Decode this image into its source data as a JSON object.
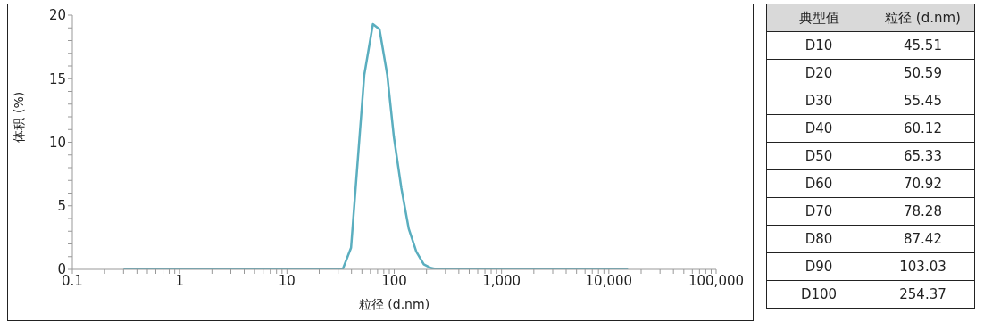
{
  "chart_data": [
    {
      "type": "line",
      "xlabel": "粒径 (d.nm)",
      "ylabel": "体积 (%)",
      "log": "x",
      "grid": false,
      "marker": "none",
      "line_style": "solid",
      "series": [
        {
          "color": "#5aaebf",
          "x": [
            0.3,
            33.1,
            39.6,
            52.6,
            63.3,
            72.9,
            86.1,
            99.3,
            116.5,
            136.5,
            160.6,
            188.5,
            221,
            254.6,
            15100
          ],
          "values": [
            0,
            0,
            1.7,
            15.3,
            19.3,
            18.9,
            15.3,
            10.4,
            6.4,
            3.2,
            1.4,
            0.4,
            0.1,
            0,
            0
          ]
        }
      ],
      "xlim": [
        0.1,
        100000
      ],
      "xticks": [
        {
          "value": 0.1,
          "label": "0.1"
        },
        {
          "value": 0.2,
          "label": null
        },
        {
          "value": 0.3,
          "label": null
        },
        {
          "value": 0.4,
          "label": null
        },
        {
          "value": 0.5,
          "label": null
        },
        {
          "value": 0.6,
          "label": null
        },
        {
          "value": 0.7,
          "label": null
        },
        {
          "value": 0.8,
          "label": null
        },
        {
          "value": 0.9,
          "label": null
        },
        {
          "value": 1,
          "label": "1"
        },
        {
          "value": 2,
          "label": null
        },
        {
          "value": 3,
          "label": null
        },
        {
          "value": 4,
          "label": null
        },
        {
          "value": 5,
          "label": null
        },
        {
          "value": 6,
          "label": null
        },
        {
          "value": 7,
          "label": null
        },
        {
          "value": 8,
          "label": null
        },
        {
          "value": 9,
          "label": null
        },
        {
          "value": 10,
          "label": "10"
        },
        {
          "value": 20,
          "label": null
        },
        {
          "value": 30,
          "label": null
        },
        {
          "value": 40,
          "label": null
        },
        {
          "value": 50,
          "label": null
        },
        {
          "value": 60,
          "label": null
        },
        {
          "value": 70,
          "label": null
        },
        {
          "value": 80,
          "label": null
        },
        {
          "value": 90,
          "label": null
        },
        {
          "value": 100,
          "label": "100"
        },
        {
          "value": 200,
          "label": null
        },
        {
          "value": 300,
          "label": null
        },
        {
          "value": 400,
          "label": null
        },
        {
          "value": 500,
          "label": null
        },
        {
          "value": 600,
          "label": null
        },
        {
          "value": 700,
          "label": null
        },
        {
          "value": 800,
          "label": null
        },
        {
          "value": 900,
          "label": null
        },
        {
          "value": 1000,
          "label": "1,000"
        },
        {
          "value": 2000,
          "label": null
        },
        {
          "value": 3000,
          "label": null
        },
        {
          "value": 4000,
          "label": null
        },
        {
          "value": 5000,
          "label": null
        },
        {
          "value": 6000,
          "label": null
        },
        {
          "value": 7000,
          "label": null
        },
        {
          "value": 8000,
          "label": null
        },
        {
          "value": 9000,
          "label": null
        },
        {
          "value": 10000,
          "label": "10,000"
        },
        {
          "value": 20000,
          "label": null
        },
        {
          "value": 30000,
          "label": null
        },
        {
          "value": 40000,
          "label": null
        },
        {
          "value": 50000,
          "label": null
        },
        {
          "value": 60000,
          "label": null
        },
        {
          "value": 70000,
          "label": null
        },
        {
          "value": 80000,
          "label": null
        },
        {
          "value": 90000,
          "label": null
        },
        {
          "value": 100000,
          "label": "100,000"
        }
      ],
      "ylim": [
        0,
        20
      ],
      "yticks": [
        0,
        {
          "value": 1,
          "label": null
        },
        {
          "value": 2,
          "label": null
        },
        {
          "value": 3,
          "label": null
        },
        {
          "value": 4,
          "label": null
        },
        5,
        {
          "value": 6,
          "label": null
        },
        {
          "value": 7,
          "label": null
        },
        {
          "value": 8,
          "label": null
        },
        {
          "value": 9,
          "label": null
        },
        10,
        {
          "value": 11,
          "label": null
        },
        {
          "value": 12,
          "label": null
        },
        {
          "value": 13,
          "label": null
        },
        {
          "value": 14,
          "label": null
        },
        15,
        {
          "value": 16,
          "label": null
        },
        {
          "value": 17,
          "label": null
        },
        {
          "value": 18,
          "label": null
        },
        {
          "value": 19,
          "label": null
        },
        20
      ]
    },
    {
      "type": "other",
      "xlabel": "典型值",
      "ylabel": "粒径 (d.nm)",
      "data_labels": true,
      "categories": [
        "D10",
        "D20",
        "D30",
        "D40",
        "D50",
        "D60",
        "D70",
        "D80",
        "D90",
        "D100"
      ],
      "values": [
        45.51,
        50.59,
        55.45,
        60.12,
        65.33,
        70.92,
        78.28,
        87.42,
        103.03,
        254.37
      ]
    }
  ]
}
